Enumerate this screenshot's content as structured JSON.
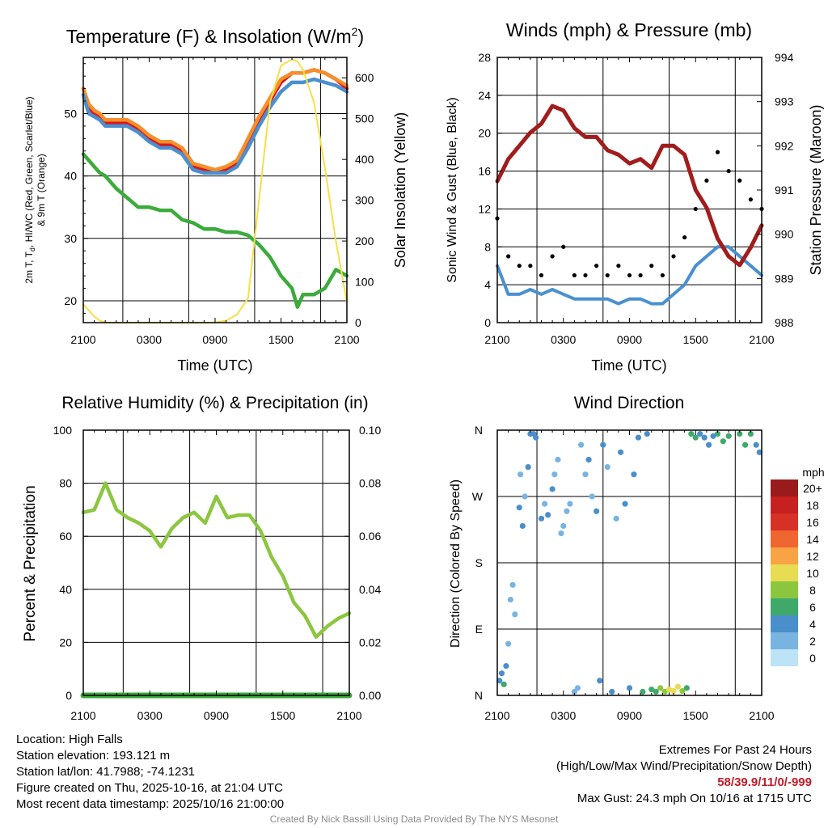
{
  "colors": {
    "red": "#d7191c",
    "orange": "#f68f2a",
    "blue": "#4a90d0",
    "green": "#3cab3c",
    "yellow": "#f5e04a",
    "maroon": "#a11d1d",
    "black": "#000000",
    "humidity": "#8cc63f",
    "precip": "#3ba83b",
    "grid": "#000000"
  },
  "x_ticks": [
    "2100",
    "0300",
    "0900",
    "1500",
    "2100"
  ],
  "chart_data": [
    {
      "id": "temperature",
      "type": "line",
      "title": "Temperature (F) & Insolation (W/m",
      "title_sup": "2",
      "title_close": ")",
      "xlabel": "Time (UTC)",
      "ylabel_line1": "2m T, T",
      "ylabel_sub": "d",
      "ylabel_line1b": ", HI/WC (Red, Green, Scarlet/Blue)",
      "ylabel_line2": "& 9m T (Orange)",
      "y2label": "Solar Insolation (Yellow)",
      "ylim": [
        16.5,
        59
      ],
      "y_ticks": [
        20,
        30,
        40,
        50
      ],
      "y2lim": [
        0,
        650
      ],
      "y2_ticks": [
        0,
        100,
        200,
        300,
        400,
        500,
        600
      ],
      "x": [
        0,
        0.5,
        1,
        1.5,
        2,
        3,
        4,
        5,
        6,
        7,
        8,
        9,
        10,
        11,
        12,
        13,
        14,
        15,
        16,
        17,
        18,
        19,
        19.5,
        20,
        21,
        22,
        23,
        24
      ],
      "series": [
        {
          "name": "2m Temperature",
          "color": "red",
          "values": [
            54,
            51,
            50,
            49.5,
            48.5,
            48.5,
            48.5,
            47.5,
            46,
            45,
            45,
            44,
            41.5,
            41,
            40.5,
            41,
            42,
            45.5,
            49,
            52,
            55,
            56.5,
            56.5,
            56.5,
            57,
            56.5,
            55.5,
            54
          ]
        },
        {
          "name": "9m Temperature",
          "color": "orange",
          "values": [
            54,
            51.5,
            50.5,
            50,
            49,
            49,
            49,
            48,
            46.5,
            45.5,
            45.5,
            44.5,
            42,
            41.5,
            41,
            41.5,
            42.5,
            46,
            49.5,
            52.5,
            55.5,
            56.5,
            56.5,
            56.5,
            57,
            56.5,
            55.5,
            54.5
          ]
        },
        {
          "name": "Heat Index / Wind Chill",
          "color": "blue",
          "values": [
            53,
            50,
            49.5,
            49,
            48,
            48,
            48,
            47,
            45.5,
            44.5,
            44.5,
            43.5,
            41,
            40.5,
            40.5,
            40.5,
            41.5,
            44.5,
            48,
            51,
            53.5,
            55,
            55,
            55,
            55.5,
            55,
            54.5,
            53.5
          ]
        },
        {
          "name": "Dew Point",
          "color": "green",
          "values": [
            43.5,
            42.5,
            41.5,
            40.5,
            40,
            38,
            36.5,
            35,
            35,
            34.5,
            34.5,
            33,
            32.5,
            31.5,
            31.5,
            31,
            31,
            30.5,
            29,
            27,
            24,
            22,
            19,
            21,
            21,
            22,
            25,
            24
          ]
        },
        {
          "name": "Solar Insolation",
          "color": "yellow",
          "axis": "y2",
          "values": [
            45,
            30,
            15,
            5,
            0,
            0,
            0,
            0,
            0,
            0,
            0,
            0,
            0,
            0,
            0,
            5,
            20,
            60,
            300,
            540,
            630,
            645,
            640,
            620,
            540,
            380,
            200,
            50
          ]
        }
      ]
    },
    {
      "id": "winds",
      "type": "line",
      "title": "Winds (mph) & Pressure (mb)",
      "xlabel": "Time (UTC)",
      "ylabel": "Sonic Wind & Gust (Blue, Black)",
      "y2label": "Station Pressure (Maroon)",
      "ylim": [
        0,
        28
      ],
      "y_ticks": [
        0,
        4,
        8,
        12,
        16,
        20,
        24,
        28
      ],
      "y2lim": [
        988,
        994
      ],
      "y2_ticks": [
        988,
        989,
        990,
        991,
        992,
        993,
        994
      ],
      "x": [
        0,
        1,
        2,
        3,
        4,
        5,
        6,
        7,
        8,
        9,
        10,
        11,
        12,
        13,
        14,
        15,
        16,
        17,
        18,
        19,
        20,
        21,
        22,
        23,
        24
      ],
      "series": [
        {
          "name": "Sonic Wind",
          "color": "blue",
          "values": [
            6,
            3,
            3,
            3.5,
            3,
            3.5,
            3,
            2.5,
            2.5,
            2.5,
            2.5,
            2,
            2.5,
            2.5,
            2,
            2,
            3,
            4,
            6,
            7,
            8,
            8,
            7,
            6,
            5
          ]
        },
        {
          "name": "Gust",
          "color": "black",
          "mode": "markers",
          "values": [
            11,
            7,
            6,
            6,
            5,
            7,
            8,
            5,
            5,
            6,
            5,
            6,
            5,
            5,
            6,
            5,
            7,
            9,
            12,
            15,
            18,
            16,
            15,
            13,
            12
          ]
        },
        {
          "name": "Station Pressure",
          "color": "maroon",
          "axis": "y2",
          "values": [
            991.2,
            991.7,
            992,
            992.3,
            992.5,
            992.9,
            992.8,
            992.4,
            992.2,
            992.2,
            991.9,
            991.8,
            991.6,
            991.7,
            991.5,
            992.0,
            992.0,
            991.8,
            991.0,
            990.6,
            989.9,
            989.5,
            989.3,
            989.7,
            990.2
          ]
        }
      ]
    },
    {
      "id": "humidity",
      "type": "line",
      "title": "Relative Humidity (%) & Precipitation (in)",
      "xlabel": "",
      "ylabel": "Percent & Precipitation",
      "ylim": [
        0,
        100
      ],
      "y_ticks": [
        0,
        20,
        40,
        60,
        80,
        100
      ],
      "y2lim": [
        0,
        0.1
      ],
      "y2_ticks": [
        "0.00",
        "0.02",
        "0.04",
        "0.06",
        "0.08",
        "0.10"
      ],
      "x": [
        0,
        1,
        2,
        3,
        4,
        5,
        6,
        7,
        8,
        9,
        10,
        11,
        12,
        13,
        14,
        15,
        16,
        17,
        18,
        19,
        20,
        21,
        22,
        23,
        24
      ],
      "series": [
        {
          "name": "Relative Humidity",
          "color": "humidity",
          "values": [
            69,
            70,
            80,
            70,
            67,
            65,
            62,
            56,
            63,
            67,
            69,
            65,
            75,
            67,
            68,
            68,
            62,
            52,
            45,
            35,
            30,
            22,
            26,
            29,
            31
          ]
        },
        {
          "name": "Precipitation",
          "color": "precip",
          "axis": "y2",
          "values": [
            0,
            0,
            0,
            0,
            0,
            0,
            0,
            0,
            0,
            0,
            0,
            0,
            0,
            0,
            0,
            0,
            0,
            0,
            0,
            0,
            0,
            0,
            0,
            0,
            0
          ]
        }
      ]
    },
    {
      "id": "wind_direction",
      "type": "scatter",
      "title": "Wind Direction",
      "xlabel": "",
      "ylabel": "Direction (Colored By Speed)",
      "y_ticks": [
        "N",
        "E",
        "S",
        "W",
        "N"
      ],
      "ylim": [
        0,
        360
      ],
      "colorbar": {
        "unit": "mph",
        "labels": [
          "20+",
          "18",
          "16",
          "14",
          "12",
          "10",
          "8",
          "6",
          "4",
          "2",
          "0"
        ],
        "colors": [
          "#991b1b",
          "#c62020",
          "#d73027",
          "#ef6630",
          "#f9a345",
          "#e7dc52",
          "#8cc63f",
          "#3fa96b",
          "#4a8fcb",
          "#79b4e0",
          "#bde3f7"
        ]
      },
      "points": [
        [
          0.2,
          20,
          3
        ],
        [
          0.4,
          30,
          4
        ],
        [
          0.6,
          15,
          5
        ],
        [
          0.8,
          40,
          3
        ],
        [
          1.0,
          70,
          2
        ],
        [
          1.2,
          130,
          2
        ],
        [
          1.4,
          150,
          2
        ],
        [
          1.6,
          110,
          2
        ],
        [
          2.0,
          255,
          3
        ],
        [
          2.1,
          300,
          2
        ],
        [
          2.3,
          230,
          3
        ],
        [
          2.5,
          270,
          2
        ],
        [
          2.8,
          310,
          3
        ],
        [
          3.0,
          355,
          3
        ],
        [
          3.3,
          355,
          4
        ],
        [
          3.5,
          350,
          3
        ],
        [
          4.0,
          240,
          3
        ],
        [
          4.3,
          260,
          2
        ],
        [
          4.6,
          245,
          3
        ],
        [
          5.0,
          280,
          3
        ],
        [
          5.2,
          300,
          2
        ],
        [
          5.5,
          320,
          2
        ],
        [
          5.8,
          220,
          1
        ],
        [
          6.0,
          230,
          1
        ],
        [
          6.3,
          250,
          2
        ],
        [
          6.6,
          260,
          2
        ],
        [
          7.0,
          5,
          1
        ],
        [
          7.3,
          10,
          2
        ],
        [
          7.6,
          340,
          2
        ],
        [
          8.0,
          300,
          2
        ],
        [
          8.3,
          320,
          3
        ],
        [
          8.6,
          270,
          2
        ],
        [
          9.0,
          250,
          3
        ],
        [
          9.3,
          20,
          3
        ],
        [
          9.6,
          340,
          3
        ],
        [
          10.0,
          310,
          2
        ],
        [
          10.4,
          5,
          3
        ],
        [
          10.8,
          240,
          2
        ],
        [
          11.2,
          330,
          3
        ],
        [
          11.6,
          260,
          3
        ],
        [
          12.0,
          10,
          3
        ],
        [
          12.4,
          300,
          3
        ],
        [
          12.8,
          350,
          4
        ],
        [
          13.2,
          5,
          5
        ],
        [
          13.6,
          355,
          4
        ],
        [
          14.0,
          8,
          6
        ],
        [
          14.4,
          5,
          6
        ],
        [
          14.8,
          10,
          7
        ],
        [
          15.2,
          5,
          8
        ],
        [
          15.6,
          8,
          9
        ],
        [
          16.0,
          6,
          10
        ],
        [
          16.4,
          12,
          9
        ],
        [
          16.8,
          6,
          7
        ],
        [
          17.2,
          10,
          6
        ],
        [
          17.6,
          355,
          5
        ],
        [
          18.0,
          350,
          6
        ],
        [
          18.4,
          355,
          4
        ],
        [
          18.8,
          350,
          4
        ],
        [
          19.2,
          340,
          4
        ],
        [
          19.6,
          352,
          4
        ],
        [
          20.0,
          355,
          6
        ],
        [
          20.5,
          345,
          5
        ],
        [
          21.0,
          352,
          6
        ],
        [
          22.0,
          355,
          6
        ],
        [
          22.5,
          340,
          5
        ],
        [
          23.0,
          355,
          5
        ],
        [
          23.5,
          340,
          4
        ],
        [
          23.8,
          330,
          4
        ]
      ]
    }
  ],
  "info_left": {
    "location": "Location: High Falls",
    "elevation": "Station elevation: 193.121 m",
    "latlon": "Station lat/lon: 41.7988; -74.1231",
    "created": "Figure created on Thu, 2025-10-16, at 21:04 UTC",
    "timestamp": "Most recent data timestamp: 2025/10/16 21:00:00"
  },
  "info_right": {
    "extremes_title": "Extremes For Past 24 Hours",
    "extremes_legend": "(High/Low/Max Wind/Precipitation/Snow Depth)",
    "extremes_values": "58/39.9/11/0/-999",
    "max_gust": "Max Gust: 24.3 mph On 10/16 at 1715 UTC"
  },
  "credit": "Created By Nick Bassill Using Data Provided By The NYS Mesonet"
}
